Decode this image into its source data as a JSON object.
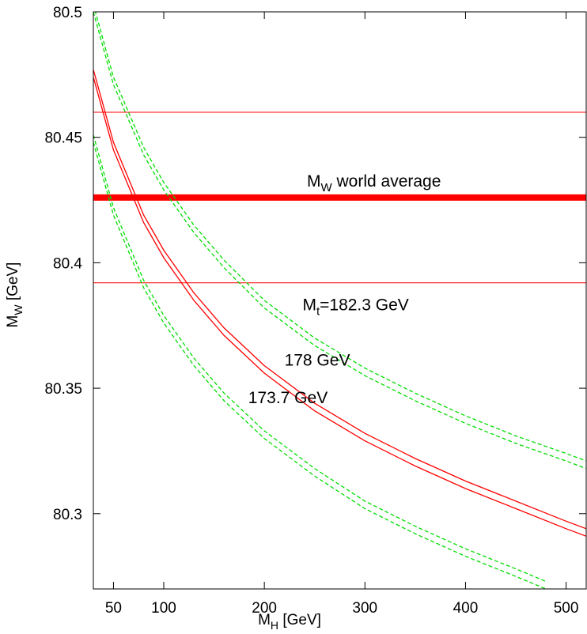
{
  "chart_data": {
    "type": "line",
    "title": "",
    "xlabel": "M_H [GeV]",
    "ylabel": "M_W [GeV]",
    "x_axis": {
      "main": "M",
      "sub": "H",
      "unit": " [GeV]",
      "lim": [
        30,
        520
      ],
      "ticks": [
        50,
        100,
        200,
        300,
        400,
        500
      ]
    },
    "y_axis": {
      "main": "M",
      "sub": "W",
      "unit": " [GeV]",
      "lim": [
        80.27,
        80.5
      ],
      "ticks": [
        80.3,
        80.35,
        80.4,
        80.45,
        80.5
      ],
      "tick_labels": [
        "80.3",
        "80.35",
        "80.4",
        "80.45",
        "80.5"
      ]
    },
    "colors": {
      "red": "#ff0000",
      "green": "#00dd00",
      "axis": "#000000"
    },
    "world_average": {
      "label_main": "M",
      "label_sub": "W",
      "label_rest": " world average",
      "value": 80.426,
      "band": [
        80.392,
        80.46
      ]
    },
    "series": [
      {
        "name": "M_t=173.7 GeV",
        "color": "green",
        "dash": true,
        "x": [
          30,
          50,
          80,
          100,
          130,
          160,
          200,
          250,
          300,
          350,
          400,
          450,
          480
        ],
        "y": [
          80.451,
          80.422,
          80.393,
          80.379,
          80.362,
          80.348,
          80.333,
          80.318,
          80.305,
          80.295,
          80.286,
          80.278,
          80.273
        ]
      },
      {
        "name": "M_t=173.7 GeV (edge)",
        "color": "green",
        "dash": true,
        "x": [
          30,
          50,
          80,
          100,
          130,
          160,
          200,
          250,
          300,
          350,
          400,
          450,
          480
        ],
        "y": [
          80.448,
          80.419,
          80.39,
          80.376,
          80.359,
          80.345,
          80.33,
          80.315,
          80.302,
          80.292,
          80.283,
          80.275,
          80.27
        ]
      },
      {
        "name": "M_t=178 GeV",
        "color": "red",
        "dash": false,
        "x": [
          30,
          50,
          80,
          100,
          130,
          160,
          200,
          250,
          300,
          350,
          400,
          450,
          500,
          520
        ],
        "y": [
          80.477,
          80.448,
          80.419,
          80.405,
          80.388,
          80.374,
          80.359,
          80.344,
          80.332,
          80.322,
          80.313,
          80.305,
          80.297,
          80.294
        ]
      },
      {
        "name": "M_t=178 GeV (edge)",
        "color": "red",
        "dash": false,
        "x": [
          30,
          50,
          80,
          100,
          130,
          160,
          200,
          250,
          300,
          350,
          400,
          450,
          500,
          520
        ],
        "y": [
          80.474,
          80.445,
          80.416,
          80.402,
          80.385,
          80.371,
          80.356,
          80.341,
          80.329,
          80.319,
          80.31,
          80.302,
          80.294,
          80.291
        ]
      },
      {
        "name": "M_t=182.3 GeV",
        "color": "green",
        "dash": true,
        "x": [
          30,
          50,
          80,
          100,
          130,
          160,
          200,
          250,
          300,
          350,
          400,
          450,
          500,
          520
        ],
        "y": [
          80.503,
          80.474,
          80.446,
          80.432,
          80.415,
          80.401,
          80.385,
          80.37,
          80.358,
          80.348,
          80.339,
          80.331,
          80.324,
          80.321
        ]
      },
      {
        "name": "M_t=182.3 GeV (edge)",
        "color": "green",
        "dash": true,
        "x": [
          30,
          50,
          80,
          100,
          130,
          160,
          200,
          250,
          300,
          350,
          400,
          450,
          500,
          520
        ],
        "y": [
          80.5,
          80.471,
          80.443,
          80.429,
          80.412,
          80.398,
          80.382,
          80.367,
          80.355,
          80.345,
          80.336,
          80.328,
          80.321,
          80.318
        ]
      }
    ],
    "annotations": [
      {
        "main": "M",
        "sub": "t",
        "rest": "=182.3 GeV",
        "x": 238,
        "y": 80.381
      },
      {
        "main": "",
        "sub": "",
        "rest": "178 GeV",
        "x": 220,
        "y": 80.359
      },
      {
        "main": "",
        "sub": "",
        "rest": "173.7 GeV",
        "x": 184,
        "y": 80.344
      }
    ]
  }
}
